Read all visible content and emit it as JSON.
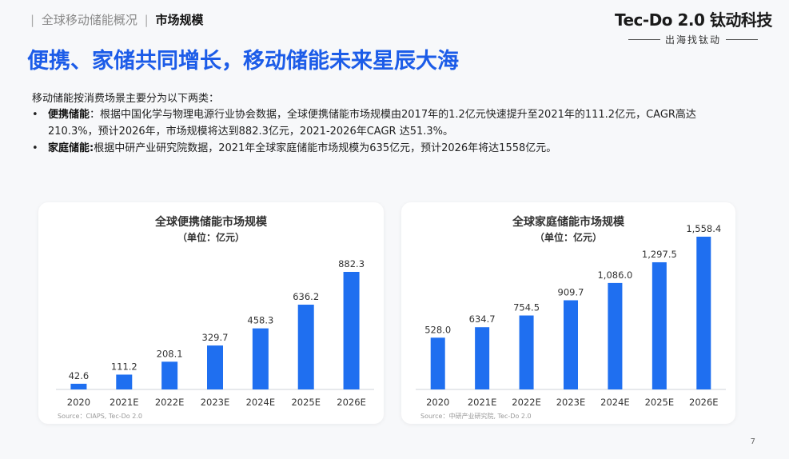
{
  "breadcrumb": {
    "parent": "全球移动储能概况",
    "separator": "|",
    "current": "市场规模"
  },
  "brand": {
    "name": "Tec-Do 2.0 钛动科技",
    "tagline": "出海找钛动"
  },
  "headline": "便携、家储共同增长，移动储能未来星辰大海",
  "intro": "移动储能按消费场景主要分为以下两类：",
  "bullets": [
    {
      "term": "便携储能",
      "text": "：根据中国化学与物理电源行业协会数据，全球便携储能市场规模由2017年的1.2亿元快速提升至2021年的111.2亿元，CAGR高达210.3%，预计2026年，市场规模将达到882.3亿元，2021-2026年CAGR 达51.3%。"
    },
    {
      "term": "家庭储能:",
      "text": "根据中研产业研究院数据，2021年全球家庭储能市场规模为635亿元，预计2026年将达1558亿元。"
    }
  ],
  "chart_data": [
    {
      "type": "bar",
      "title": "全球便携储能市场规模",
      "unit": "（单位：亿元）",
      "categories": [
        "2020",
        "2021E",
        "2022E",
        "2023E",
        "2024E",
        "2025E",
        "2026E"
      ],
      "values": [
        42.6,
        111.2,
        208.1,
        329.7,
        458.3,
        636.2,
        882.3
      ],
      "value_labels": [
        "42.6",
        "111.2",
        "208.1",
        "329.7",
        "458.3",
        "636.2",
        "882.3"
      ],
      "ylim": [
        0,
        882.3
      ],
      "source": "Source：CIAPS, Tec-Do 2.0",
      "color": "#1f6ff0"
    },
    {
      "type": "bar",
      "title": "全球家庭储能市场规模",
      "unit": "（单位：亿元）",
      "categories": [
        "2020",
        "2021E",
        "2022E",
        "2023E",
        "2024E",
        "2025E",
        "2026E"
      ],
      "values": [
        528.0,
        634.7,
        754.5,
        909.7,
        1086.0,
        1297.5,
        1558.4
      ],
      "value_labels": [
        "528.0",
        "634.7",
        "754.5",
        "909.7",
        "1,086.0",
        "1,297.5",
        "1,558.4"
      ],
      "ylim": [
        0,
        1558.4
      ],
      "source": "Source：中研产业研究院, Tec-Do 2.0",
      "color": "#1f6ff0"
    }
  ],
  "page_number": "7"
}
